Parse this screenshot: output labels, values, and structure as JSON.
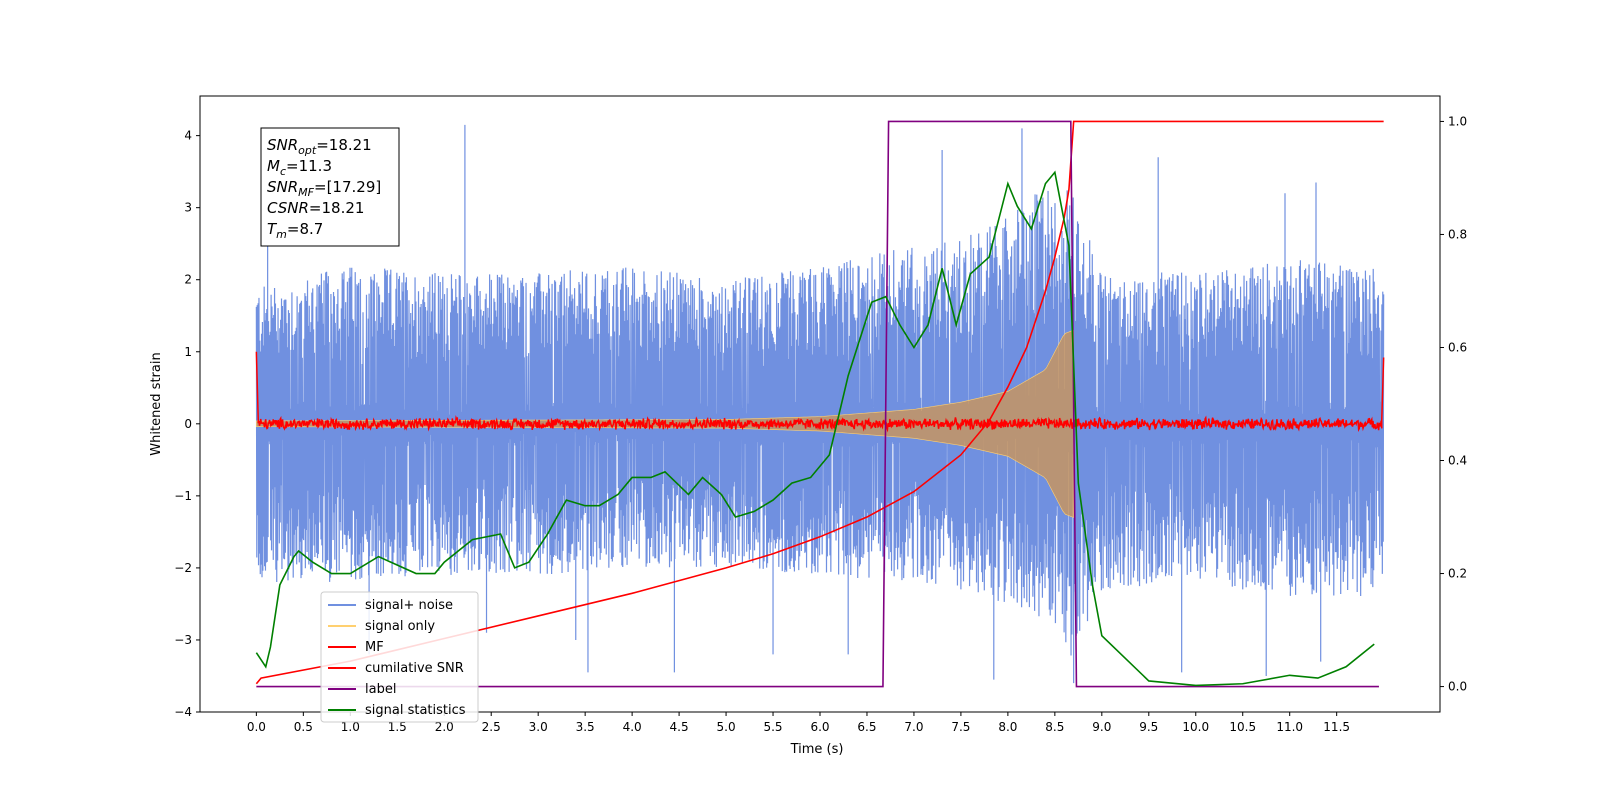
{
  "chart_data": {
    "type": "line",
    "xlabel": "Time (s)",
    "ylabel": "Whitened strain",
    "xlim": [
      -0.6,
      12.6
    ],
    "ylim": [
      -4.0,
      4.55
    ],
    "y2lim": [
      -0.045,
      1.045
    ],
    "xticks": [
      0.0,
      0.5,
      1.0,
      1.5,
      2.0,
      2.5,
      3.0,
      3.5,
      4.0,
      4.5,
      5.0,
      5.5,
      6.0,
      6.5,
      7.0,
      7.5,
      8.0,
      8.5,
      9.0,
      9.5,
      10.0,
      10.5,
      11.0,
      11.5
    ],
    "xtick_labels": [
      "0.0",
      "0.5",
      "1.0",
      "1.5",
      "2.0",
      "2.5",
      "3.0",
      "3.5",
      "4.0",
      "4.5",
      "5.0",
      "5.5",
      "6.0",
      "6.5",
      "7.0",
      "7.5",
      "8.0",
      "8.5",
      "9.0",
      "9.5",
      "10.0",
      "10.5",
      "11.0",
      "11.5"
    ],
    "yticks": [
      -4,
      -3,
      -2,
      -1,
      0,
      1,
      2,
      3,
      4
    ],
    "ytick_labels": [
      "−4",
      "−3",
      "−2",
      "−1",
      "0",
      "1",
      "2",
      "3",
      "4"
    ],
    "y2ticks": [
      0.0,
      0.2,
      0.4,
      0.6,
      0.8,
      1.0
    ],
    "y2tick_labels": [
      "0.0",
      "0.2",
      "0.4",
      "0.6",
      "0.8",
      "1.0"
    ],
    "grid": false,
    "legend_position": "lower-left",
    "annotation": {
      "lines": [
        {
          "base": "SNR",
          "sub": "opt",
          "rest": "=18.21"
        },
        {
          "base": "M",
          "sub": "c",
          "rest": "=11.3"
        },
        {
          "base": "SNR",
          "sub": "MF",
          "rest": "=[17.29]"
        },
        {
          "base": "CSNR",
          "sub": "",
          "rest": "=18.21"
        },
        {
          "base": "T",
          "sub": "m",
          "rest": "=8.7"
        }
      ]
    },
    "series": [
      {
        "name": "signal+ noise",
        "color": "#7090e0",
        "axis": "left",
        "envelope": {
          "x": [
            0.0,
            1.0,
            2.0,
            3.0,
            4.0,
            5.0,
            6.0,
            7.0,
            7.5,
            8.0,
            8.5,
            8.7,
            9.0,
            10.0,
            11.0,
            12.0
          ],
          "upper": [
            1.9,
            2.2,
            2.1,
            2.1,
            2.2,
            2.0,
            2.2,
            2.5,
            2.6,
            2.9,
            3.4,
            3.2,
            2.1,
            2.1,
            2.3,
            2.2
          ],
          "lower": [
            -2.2,
            -2.2,
            -2.1,
            -2.1,
            -2.0,
            -2.0,
            -2.1,
            -2.2,
            -2.3,
            -2.5,
            -2.8,
            -3.4,
            -2.3,
            -2.2,
            -2.4,
            -2.4
          ]
        },
        "peaks": [
          [
            0.12,
            2.5
          ],
          [
            1.2,
            -3.2
          ],
          [
            2.22,
            4.15
          ],
          [
            2.45,
            -2.9
          ],
          [
            3.4,
            -3.0
          ],
          [
            3.53,
            -3.45
          ],
          [
            4.45,
            -3.45
          ],
          [
            5.5,
            -3.2
          ],
          [
            6.3,
            -3.2
          ],
          [
            7.3,
            3.8
          ],
          [
            7.85,
            -3.55
          ],
          [
            8.15,
            4.1
          ],
          [
            8.7,
            -3.6
          ],
          [
            9.6,
            3.7
          ],
          [
            9.85,
            -3.45
          ],
          [
            10.75,
            -3.5
          ],
          [
            10.95,
            3.2
          ],
          [
            11.28,
            3.35
          ],
          [
            11.33,
            -3.3
          ]
        ]
      },
      {
        "name": "signal only",
        "color": "#ffd070",
        "axis": "left",
        "chirp": {
          "x": [
            0,
            5,
            6,
            7,
            7.5,
            8,
            8.4,
            8.6,
            8.7
          ],
          "amp": [
            0.04,
            0.06,
            0.1,
            0.2,
            0.3,
            0.45,
            0.75,
            1.25,
            1.3
          ]
        }
      },
      {
        "name": "MF",
        "color": "#ff0000",
        "axis": "left",
        "noise_amp": 0.09,
        "edges": {
          "start": [
            [
              0.0,
              1.0
            ],
            [
              0.02,
              0.05
            ]
          ],
          "end": [
            [
              11.98,
              0.05
            ],
            [
              12.0,
              0.92
            ]
          ]
        }
      },
      {
        "name": "cumilative SNR",
        "color": "#ff0000",
        "axis": "right",
        "x": [
          0.0,
          0.05,
          1.0,
          2.0,
          3.0,
          4.0,
          5.0,
          5.5,
          6.0,
          6.5,
          7.0,
          7.5,
          7.8,
          8.0,
          8.2,
          8.4,
          8.5,
          8.6,
          8.65,
          8.7,
          12.0
        ],
        "y": [
          0.005,
          0.015,
          0.045,
          0.085,
          0.125,
          0.165,
          0.21,
          0.235,
          0.265,
          0.3,
          0.345,
          0.41,
          0.47,
          0.53,
          0.6,
          0.7,
          0.76,
          0.83,
          0.88,
          1.0,
          1.0
        ]
      },
      {
        "name": "label",
        "color": "#800080",
        "axis": "right",
        "x": [
          0.0,
          6.67,
          6.73,
          8.67,
          8.73,
          11.95
        ],
        "y": [
          0.0,
          0.0,
          1.0,
          1.0,
          0.0,
          0.0
        ]
      },
      {
        "name": "signal statistics",
        "color": "#008000",
        "axis": "right",
        "x": [
          0.0,
          0.1,
          0.15,
          0.25,
          0.4,
          0.45,
          0.6,
          0.8,
          1.0,
          1.3,
          1.7,
          1.9,
          2.0,
          2.3,
          2.6,
          2.75,
          2.9,
          3.1,
          3.3,
          3.5,
          3.65,
          3.85,
          4.0,
          4.2,
          4.35,
          4.6,
          4.75,
          4.95,
          5.1,
          5.3,
          5.5,
          5.7,
          5.9,
          6.1,
          6.3,
          6.55,
          6.7,
          6.85,
          7.0,
          7.15,
          7.3,
          7.45,
          7.6,
          7.8,
          8.0,
          8.1,
          8.25,
          8.4,
          8.5,
          8.65,
          8.75,
          8.9,
          9.0,
          9.5,
          10.0,
          10.5,
          11.0,
          11.3,
          11.6,
          11.9
        ],
        "y": [
          0.06,
          0.035,
          0.07,
          0.18,
          0.23,
          0.24,
          0.22,
          0.2,
          0.2,
          0.23,
          0.2,
          0.2,
          0.22,
          0.26,
          0.27,
          0.21,
          0.22,
          0.27,
          0.33,
          0.32,
          0.32,
          0.34,
          0.37,
          0.37,
          0.38,
          0.34,
          0.37,
          0.34,
          0.3,
          0.31,
          0.33,
          0.36,
          0.37,
          0.41,
          0.55,
          0.68,
          0.69,
          0.64,
          0.6,
          0.64,
          0.74,
          0.64,
          0.73,
          0.76,
          0.89,
          0.85,
          0.81,
          0.89,
          0.91,
          0.78,
          0.36,
          0.18,
          0.09,
          0.01,
          0.002,
          0.005,
          0.02,
          0.015,
          0.035,
          0.075
        ]
      }
    ]
  }
}
